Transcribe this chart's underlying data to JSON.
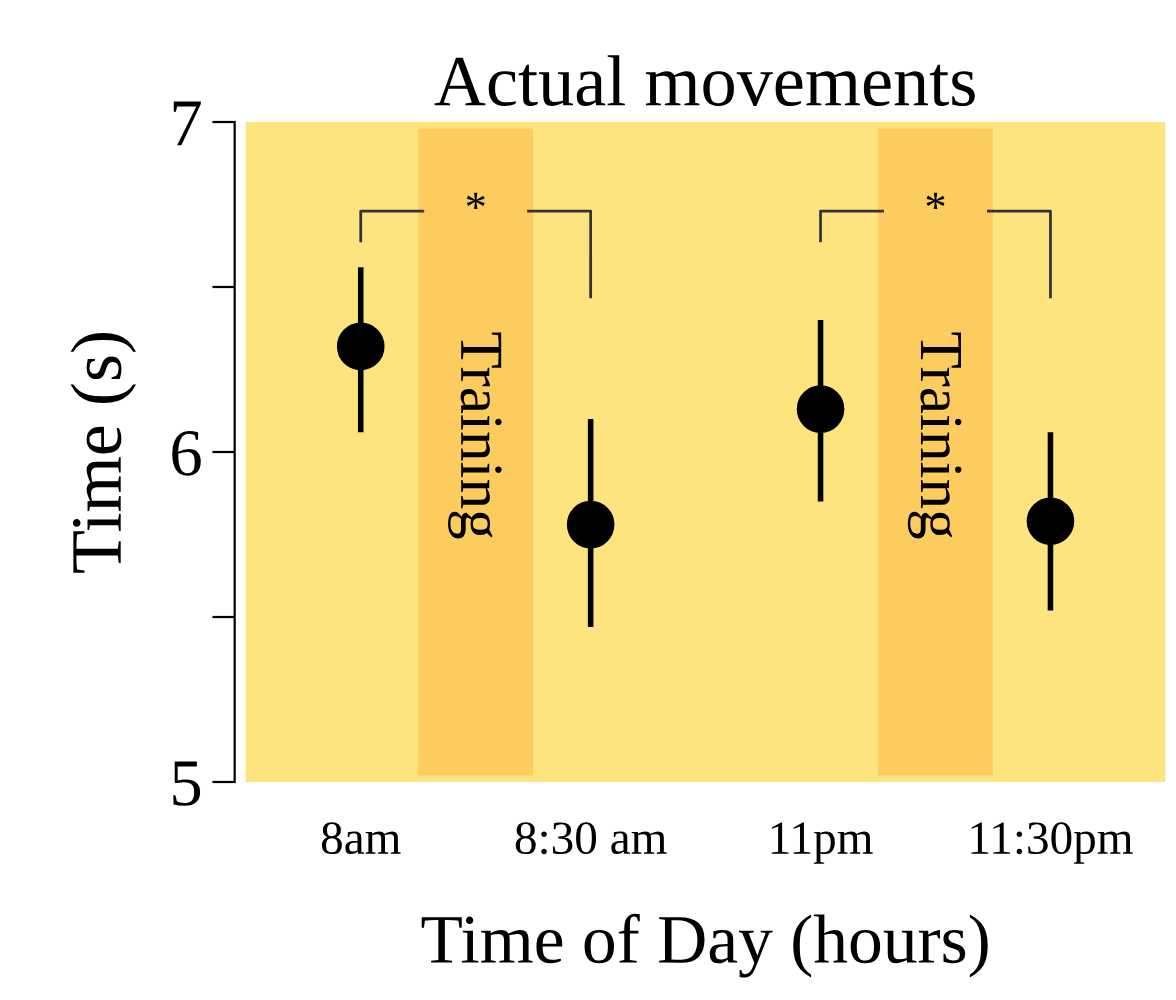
{
  "chart_data": {
    "type": "scatter",
    "title": "Actual movements",
    "xlabel": "Time of Day (hours)",
    "ylabel": "Time (s)",
    "categories": [
      "8am",
      "8:30 am",
      "11pm",
      "11:30pm"
    ],
    "series": [
      {
        "color": "#000000",
        "values": [
          6.32,
          5.78,
          6.13,
          5.79
        ],
        "errors": [
          [
            6.06,
            6.56
          ],
          [
            5.47,
            6.1
          ],
          [
            5.85,
            6.4
          ],
          [
            5.52,
            6.06
          ]
        ]
      }
    ],
    "ylim": [
      5,
      7
    ],
    "yticks": [
      5,
      {
        "value": 5.5,
        "label": null
      },
      6,
      {
        "value": 6.5,
        "label": null
      },
      7
    ],
    "bands": [
      {
        "axis": "x",
        "from": "8am",
        "to": "8:30 am",
        "label": "Training",
        "color": "#fccc5f"
      },
      {
        "axis": "x",
        "from": "11pm",
        "to": "11:30pm",
        "label": "Training",
        "color": "#fccc5f"
      }
    ],
    "annotations": [
      "*",
      "*"
    ],
    "marker": "circle",
    "grid": false
  }
}
